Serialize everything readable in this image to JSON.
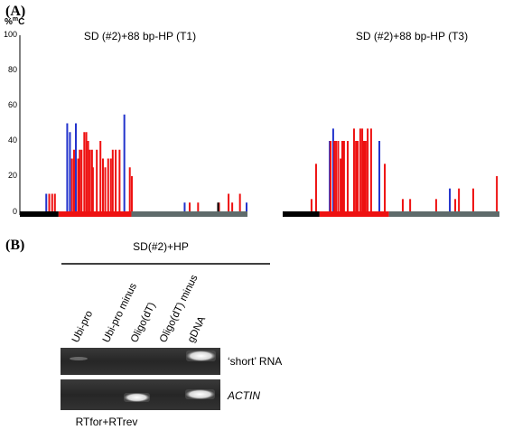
{
  "figure": {
    "panel_a_label": "(A)",
    "panel_b_label": "(B)"
  },
  "chart_data": [
    {
      "type": "bar",
      "title": "SD (#2)+88 bp-HP (T1)",
      "ylabel_main": "%",
      "ylabel_sup": "m",
      "ylabel_end": "C",
      "ylim": [
        0,
        100
      ],
      "yticks": [
        0,
        20,
        40,
        60,
        80,
        100
      ],
      "xlim": [
        0,
        100
      ],
      "segments": [
        {
          "from": 0,
          "to": 17,
          "color": "#000000"
        },
        {
          "from": 17,
          "to": 49,
          "color": "#ee1111"
        },
        {
          "from": 49,
          "to": 100,
          "color": "#5f6b6b"
        }
      ],
      "series": [
        {
          "color": "#2233cc",
          "x": [
            11.6,
            20.8,
            22.0,
            24.6,
            45.9,
            72.4,
            99.6
          ],
          "values": [
            10,
            50,
            45,
            50,
            55,
            5,
            5
          ]
        },
        {
          "color": "#ee1111",
          "x": [
            12.9,
            14.2,
            15.4,
            22.9,
            23.8,
            25.6,
            26.3,
            27.1,
            28.3,
            29.2,
            30.0,
            30.8,
            31.7,
            32.1,
            33.8,
            35.4,
            36.5,
            37.5,
            38.8,
            40.0,
            40.8,
            42.1,
            43.8,
            48.3,
            49.2,
            74.6,
            78.3,
            87.5,
            91.7,
            93.3,
            96.7
          ],
          "values": [
            10,
            10,
            10,
            30,
            35,
            30,
            35,
            35,
            45,
            45,
            40,
            35,
            35,
            25,
            35,
            40,
            30,
            25,
            30,
            30,
            35,
            35,
            35,
            25,
            20,
            5,
            5,
            5,
            10,
            5,
            10
          ]
        },
        {
          "color": "#000000",
          "x": [
            87.1
          ],
          "values": [
            5
          ]
        }
      ]
    },
    {
      "type": "bar",
      "title": "SD (#2)+88 bp-HP (T3)",
      "ylim": [
        0,
        100
      ],
      "xlim": [
        0,
        100
      ],
      "segments": [
        {
          "from": 0,
          "to": 17,
          "color": "#000000"
        },
        {
          "from": 17,
          "to": 49,
          "color": "#ee1111"
        },
        {
          "from": 49,
          "to": 100,
          "color": "#5f6b6b"
        }
      ],
      "series": [
        {
          "color": "#2233cc",
          "x": [
            21.7,
            23.3,
            44.6,
            77.1
          ],
          "values": [
            40,
            47,
            40,
            13
          ]
        },
        {
          "color": "#ee1111",
          "x": [
            13.3,
            15.4,
            22.1,
            23.8,
            24.6,
            25.6,
            26.7,
            27.5,
            28.3,
            30.0,
            32.9,
            33.8,
            34.6,
            35.8,
            36.7,
            37.5,
            38.3,
            39.2,
            40.8,
            47.1,
            55.4,
            58.8,
            70.8,
            79.6,
            81.3,
            87.9,
            98.8
          ],
          "values": [
            7,
            27,
            40,
            40,
            40,
            40,
            30,
            40,
            40,
            40,
            47,
            40,
            40,
            47,
            47,
            40,
            40,
            47,
            47,
            27,
            7,
            7,
            7,
            7,
            13,
            13,
            20
          ]
        }
      ]
    }
  ],
  "gel": {
    "header": "SD(#2)+HP",
    "lanes": [
      "Ubi-pro",
      "Ubi-pro minus",
      "Oligo(dT)",
      "Oligo(dT) minus",
      "gDNA"
    ],
    "bands": [
      {
        "label": "‘short’ RNA",
        "italic": false,
        "lanes_present": [
          0,
          4
        ]
      },
      {
        "label": "ACTIN",
        "italic": true,
        "lanes_present": [
          2,
          4
        ]
      }
    ],
    "footer": "RTfor+RTrev"
  }
}
